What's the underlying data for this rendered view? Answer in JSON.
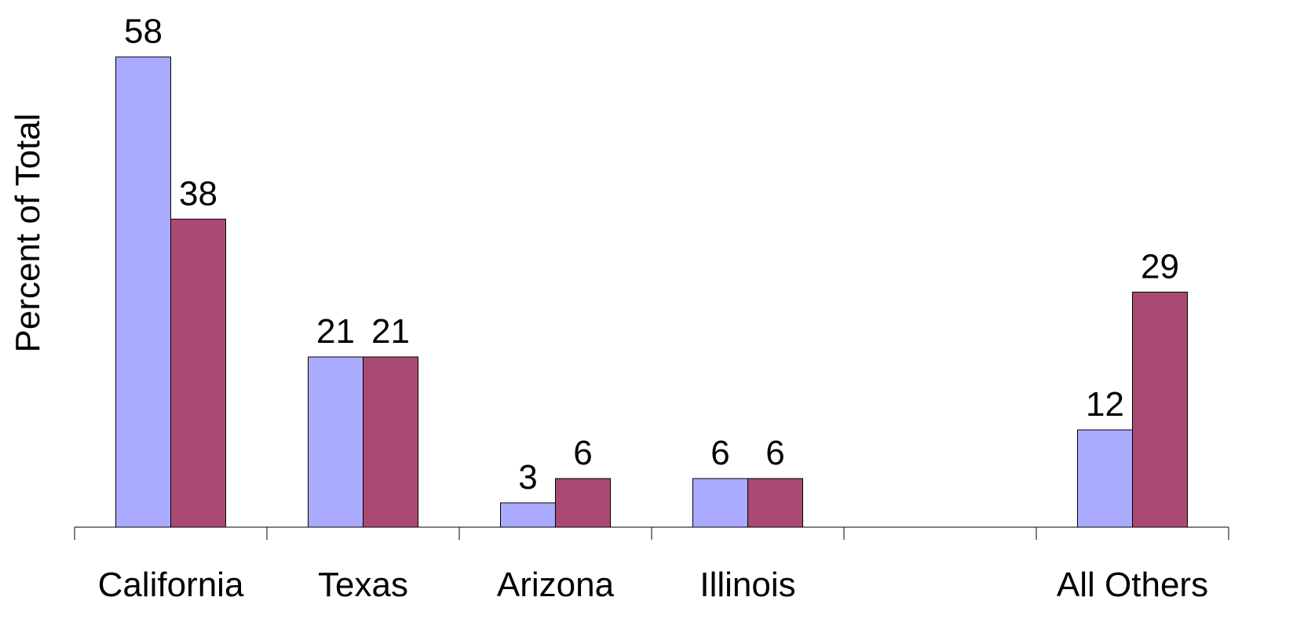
{
  "chart_data": {
    "type": "bar",
    "y_label": "Percent of Total",
    "categories": [
      "California",
      "Texas",
      "Arizona",
      "Illinois",
      null,
      "All Others"
    ],
    "series": [
      {
        "color": "#aaaaff",
        "values": [
          58,
          21,
          3,
          6,
          null,
          12
        ]
      },
      {
        "color": "#a94a74",
        "values": [
          38,
          21,
          6,
          6,
          null,
          29
        ]
      }
    ],
    "ylim": [
      0,
      60
    ],
    "grid": false
  }
}
